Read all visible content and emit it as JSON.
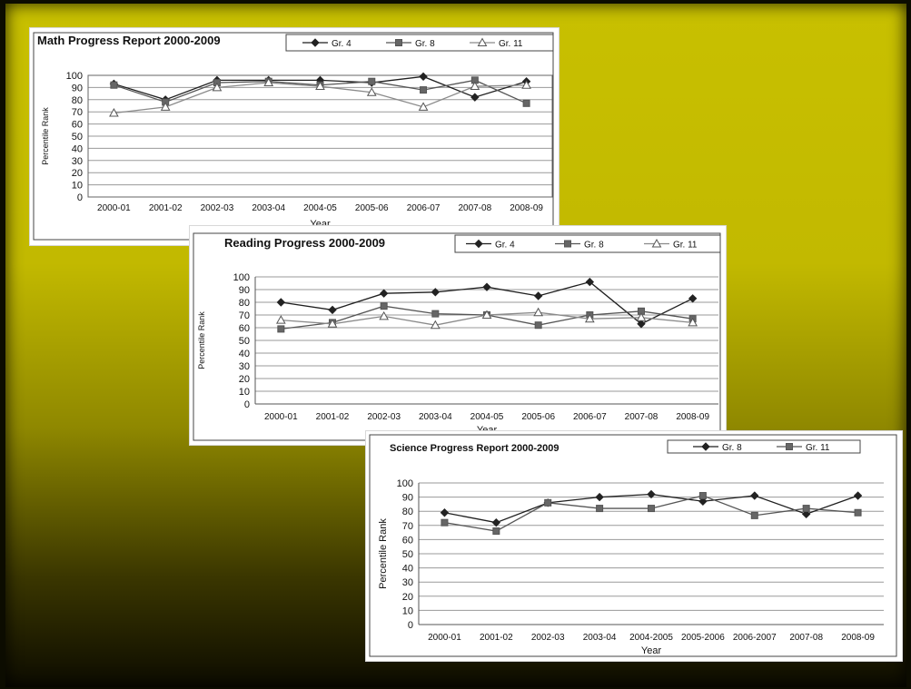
{
  "chart_data": [
    {
      "type": "line",
      "title": "Math Progress Report 2000-2009",
      "xlabel": "Year",
      "ylabel": "Percentile Rank",
      "ylim": [
        0,
        100
      ],
      "yticks": [
        0,
        10,
        20,
        30,
        40,
        50,
        60,
        70,
        80,
        90,
        100
      ],
      "categories": [
        "2000-01",
        "2001-02",
        "2002-03",
        "2003-04",
        "2004-05",
        "2005-06",
        "2006-07",
        "2007-08",
        "2008-09"
      ],
      "grid": true,
      "legend": "top-right",
      "series": [
        {
          "name": "Gr. 4",
          "marker": "diamond",
          "values": [
            93,
            80,
            96,
            96,
            96,
            94,
            99,
            82,
            95
          ]
        },
        {
          "name": "Gr. 8",
          "marker": "square",
          "values": [
            92,
            78,
            94,
            95,
            92,
            95,
            88,
            96,
            77
          ]
        },
        {
          "name": "Gr. 11",
          "marker": "triangle",
          "values": [
            69,
            74,
            90,
            94,
            91,
            86,
            74,
            91,
            92
          ]
        }
      ]
    },
    {
      "type": "line",
      "title": "Reading Progress 2000-2009",
      "xlabel": "Year",
      "ylabel": "Percentile Rank",
      "ylim": [
        0,
        100
      ],
      "yticks": [
        0,
        10,
        20,
        30,
        40,
        50,
        60,
        70,
        80,
        90,
        100
      ],
      "categories": [
        "2000-01",
        "2001-02",
        "2002-03",
        "2003-04",
        "2004-05",
        "2005-06",
        "2006-07",
        "2007-08",
        "2008-09"
      ],
      "grid": true,
      "legend": "top-right",
      "series": [
        {
          "name": "Gr. 4",
          "marker": "diamond",
          "values": [
            80,
            74,
            87,
            88,
            92,
            85,
            96,
            63,
            83
          ]
        },
        {
          "name": "Gr. 8",
          "marker": "square",
          "values": [
            59,
            64,
            77,
            71,
            70,
            62,
            70,
            73,
            67
          ]
        },
        {
          "name": "Gr. 11",
          "marker": "triangle",
          "values": [
            66,
            63,
            69,
            62,
            70,
            72,
            67,
            68,
            64
          ]
        }
      ]
    },
    {
      "type": "line",
      "title": "Science Progress Report 2000-2009",
      "xlabel": "Year",
      "ylabel": "Percentile Rank",
      "ylim": [
        0,
        100
      ],
      "yticks": [
        0,
        10,
        20,
        30,
        40,
        50,
        60,
        70,
        80,
        90,
        100
      ],
      "categories": [
        "2000-01",
        "2001-02",
        "2002-03",
        "2003-04",
        "2004-2005",
        "2005-2006",
        "2006-2007",
        "2007-08",
        "2008-09"
      ],
      "grid": true,
      "legend": "top-right",
      "series": [
        {
          "name": "Gr. 8",
          "marker": "diamond",
          "values": [
            79,
            72,
            86,
            90,
            92,
            87,
            91,
            78,
            91
          ]
        },
        {
          "name": "Gr. 11",
          "marker": "square",
          "values": [
            72,
            66,
            86,
            82,
            82,
            91,
            77,
            82,
            79
          ]
        }
      ]
    }
  ]
}
